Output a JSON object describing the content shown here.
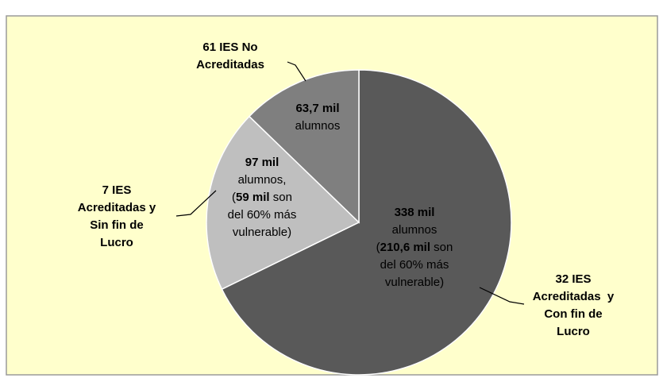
{
  "chart_data": {
    "type": "pie",
    "categories": [
      [
        "32 IES",
        "Acreditadas  y",
        "Con fin de",
        "Lucro"
      ],
      [
        "7 IES",
        "Acreditadas y",
        "Sin fin de",
        "Lucro"
      ],
      [
        "61 IES No",
        "Acreditadas"
      ]
    ],
    "values": [
      338,
      97,
      63.7
    ],
    "value_labels": [
      "338 mil",
      "97 mil",
      "63,7 mil"
    ],
    "colors": [
      "#595959",
      "#bfbfbf",
      "#7f7f7f"
    ],
    "details": [
      [
        [
          {
            "text": "alumnos",
            "bold": false
          }
        ],
        [
          {
            "text": "(",
            "bold": false
          },
          {
            "text": "210,6 mil",
            "bold": true
          },
          {
            "text": " son",
            "bold": false
          }
        ],
        [
          {
            "text": "del 60% más",
            "bold": false
          }
        ],
        [
          {
            "text": "vulnerable)",
            "bold": false
          }
        ]
      ],
      [
        [
          {
            "text": "alumnos,",
            "bold": false
          }
        ],
        [
          {
            "text": "(",
            "bold": false
          },
          {
            "text": "59 mil",
            "bold": true
          },
          {
            "text": " son",
            "bold": false
          }
        ],
        [
          {
            "text": "del 60% más",
            "bold": false
          }
        ],
        [
          {
            "text": "vulnerable)",
            "bold": false
          }
        ]
      ],
      [
        [
          {
            "text": "alumnos",
            "bold": false
          }
        ]
      ]
    ]
  }
}
